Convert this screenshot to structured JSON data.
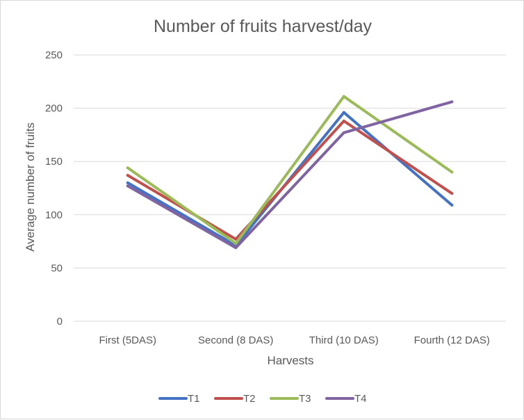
{
  "chart_data": {
    "type": "line",
    "title": "Number of fruits harvest/day",
    "xlabel": "Harvests",
    "ylabel": "Average number of fruits",
    "categories": [
      "First (5DAS)",
      "Second (8 DAS)",
      "Third (10 DAS)",
      "Fourth (12 DAS)"
    ],
    "ylim": [
      0,
      250
    ],
    "yticks": [
      0,
      50,
      100,
      150,
      200,
      250
    ],
    "grid": true,
    "legend": "bottom",
    "series": [
      {
        "name": "T1",
        "color": "#4472C4",
        "values": [
          130,
          71,
          196,
          109
        ]
      },
      {
        "name": "T2",
        "color": "#C0504D",
        "values": [
          137,
          77,
          188,
          120
        ]
      },
      {
        "name": "T3",
        "color": "#9BBB59",
        "values": [
          144,
          73,
          211,
          140
        ]
      },
      {
        "name": "T4",
        "color": "#8064A2",
        "values": [
          127,
          69,
          177,
          206
        ]
      }
    ]
  }
}
